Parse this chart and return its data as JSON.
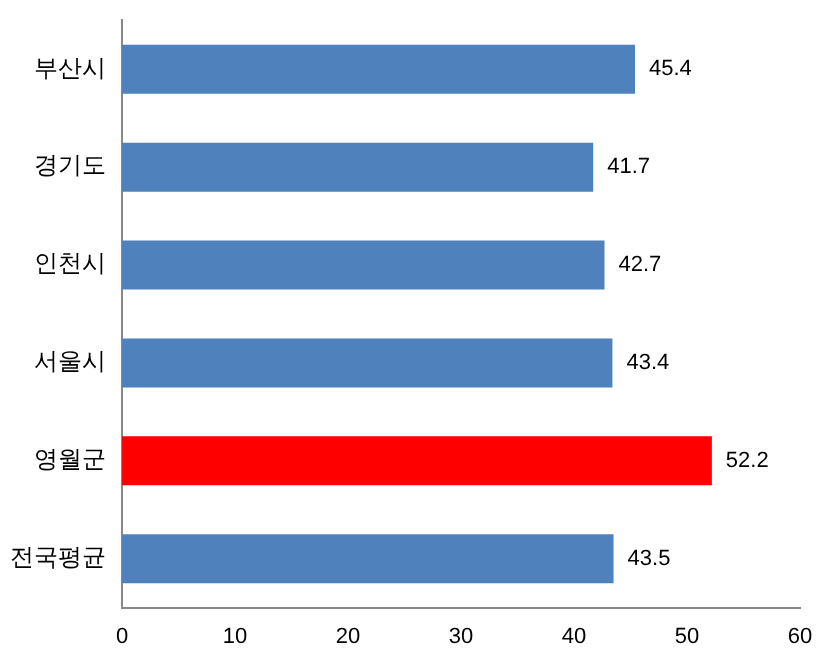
{
  "chart_data": {
    "type": "bar",
    "orientation": "horizontal",
    "categories": [
      "부산시",
      "경기도",
      "인천시",
      "서울시",
      "영월군",
      "전국평균"
    ],
    "values": [
      45.4,
      41.7,
      42.7,
      43.4,
      52.2,
      43.5
    ],
    "colors": [
      "#4f81bd",
      "#4f81bd",
      "#4f81bd",
      "#4f81bd",
      "#ff0000",
      "#4f81bd"
    ],
    "xlim": [
      0,
      60
    ],
    "xticks": [
      0,
      10,
      20,
      30,
      40,
      50,
      60
    ],
    "data_labels": true,
    "grid": false,
    "legend": false
  }
}
